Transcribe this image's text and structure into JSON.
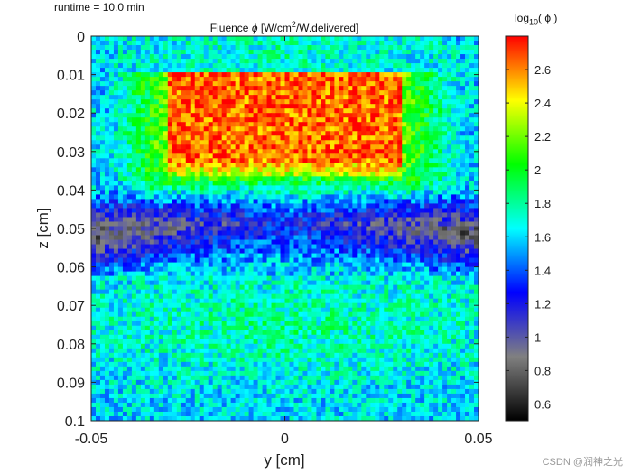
{
  "header": {
    "runtime": "runtime = 10.0 min",
    "title_prefix": "Fluence ",
    "title_symbol": "ϕ",
    "title_mid": " [W/cm",
    "title_sup": "2",
    "title_suffix": "/W.delivered]"
  },
  "colorbar": {
    "label_prefix": "log",
    "label_sub": "10",
    "label_suffix": "( ϕ )",
    "tick_labels": [
      "0.6",
      "0.8",
      "1",
      "1.2",
      "1.4",
      "1.6",
      "1.8",
      "2",
      "2.2",
      "2.4",
      "2.6"
    ],
    "colormap": "jet-with-dark-low-end",
    "stops": [
      "#000000",
      "#808080",
      "#0000FF",
      "#00FFFF",
      "#00FF00",
      "#FFFF00",
      "#FF0000"
    ]
  },
  "watermark": "CSDN @润神之光",
  "chart_data": {
    "type": "heatmap",
    "title": "Fluence ϕ [W/cm2/W.delivered]",
    "xlabel": "y [cm]",
    "ylabel": "z [cm]",
    "x_ticks": [
      "-0.05",
      "0",
      "0.05"
    ],
    "y_ticks": [
      "0",
      "0.01",
      "0.02",
      "0.03",
      "0.04",
      "0.05",
      "0.06",
      "0.07",
      "0.08",
      "0.09",
      "0.1"
    ],
    "xlim": [
      -0.05,
      0.05
    ],
    "ylim": [
      0,
      0.1
    ],
    "y_direction": "downward",
    "clim": [
      0.5,
      2.8
    ],
    "colorbar_ticks": [
      0.6,
      0.8,
      1,
      1.2,
      1.4,
      1.6,
      1.8,
      2,
      2.2,
      2.4,
      2.6
    ],
    "features": [
      {
        "name": "high-fluence block",
        "y_range": [
          -0.03,
          0.03
        ],
        "z_range": [
          0.01,
          0.032
        ],
        "log10_phi": 2.65
      },
      {
        "name": "low-fluence band",
        "z_range": [
          0.045,
          0.058
        ],
        "log10_phi": 0.75
      },
      {
        "name": "lower region",
        "z_range": [
          0.06,
          0.1
        ],
        "log10_phi": 1.6
      }
    ]
  }
}
